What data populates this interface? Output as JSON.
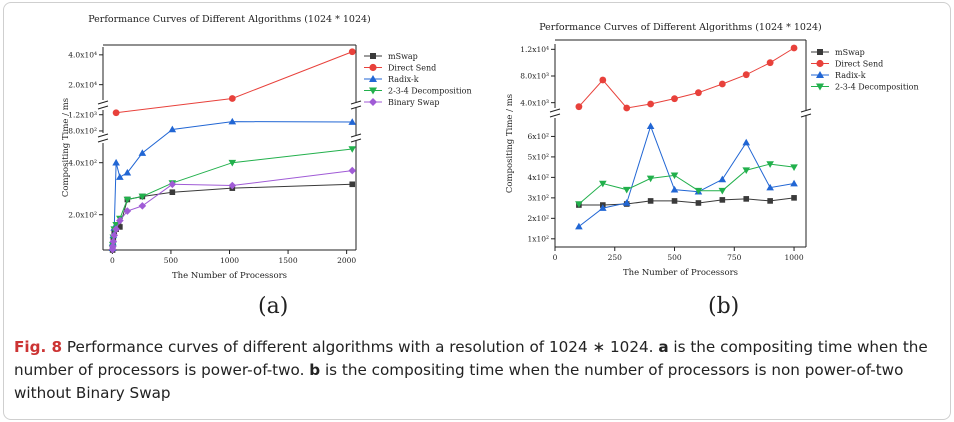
{
  "charts": {
    "a": {
      "sublabel": "(a)",
      "chart_data": {
        "type": "line",
        "title": "Performance Curves of Different Algorithms (1024 * 1024)",
        "xlabel": "The Number of Processors",
        "ylabel": "Compositing Time / ms",
        "xlim": [
          -80,
          2080
        ],
        "x_ticks": [
          0,
          500,
          1000,
          1500,
          2000
        ],
        "y_scale": "log, broken axis",
        "y_segments": [
          {
            "range": [
              125,
              520
            ],
            "ticks": [
              200,
              400
            ],
            "tick_labels": [
              "2.0x10²",
              "4.0x10²"
            ]
          },
          {
            "range": [
              760,
              1350
            ],
            "ticks": [
              800,
              1200
            ],
            "tick_labels": [
              "8.0x10²",
              "1.2x10³"
            ]
          },
          {
            "range": [
              14000,
              48000
            ],
            "ticks": [
              20000,
              40000
            ],
            "tick_labels": [
              "2.0x10⁴",
              "4.0x10⁴"
            ]
          }
        ],
        "legend_position": "top-right",
        "series": [
          {
            "name": "mSwap",
            "color": "#3a3a3a",
            "marker": "square",
            "x": [
              2,
              4,
              8,
              16,
              32,
              64,
              128,
              256,
              512,
              1024,
              2048
            ],
            "y": [
              125,
              133,
              145,
              158,
              165,
              170,
              245,
              255,
              270,
              285,
              300
            ]
          },
          {
            "name": "Direct Send",
            "color": "#e8413b",
            "marker": "circle",
            "x": [
              32,
              1024,
              2048
            ],
            "y": [
              1260,
              14500,
              43000
            ]
          },
          {
            "name": "Radix-k",
            "color": "#2166d4",
            "marker": "triangle-up",
            "x": [
              2,
              4,
              8,
              16,
              32,
              64,
              128,
              256,
              512,
              1024,
              2048
            ],
            "y": [
              128,
              138,
              152,
              168,
              400,
              330,
              350,
              455,
              830,
              1010,
              1000
            ]
          },
          {
            "name": "2-3-4 Decomposition",
            "color": "#22b04c",
            "marker": "triangle-down",
            "x": [
              2,
              4,
              8,
              16,
              32,
              64,
              128,
              256,
              512,
              1024,
              2048
            ],
            "y": [
              128,
              134,
              148,
              165,
              175,
              190,
              245,
              255,
              305,
              400,
              480
            ]
          },
          {
            "name": "Binary Swap",
            "color": "#a05bd6",
            "marker": "diamond",
            "x": [
              2,
              4,
              8,
              16,
              32,
              64,
              128,
              256,
              512,
              1024,
              2048
            ],
            "y": [
              126,
              131,
              140,
              152,
              165,
              185,
              210,
              225,
              300,
              295,
              360
            ]
          }
        ]
      }
    },
    "b": {
      "sublabel": "(b)",
      "chart_data": {
        "type": "line",
        "title": "Performance Curves of Different Algorithms (1024 * 1024)",
        "xlabel": "The Number of Processors",
        "ylabel": "Compositing Time / ms",
        "xlim": [
          0,
          1050
        ],
        "x_ticks": [
          0,
          250,
          500,
          750,
          1000
        ],
        "y_scale": "broken axis",
        "y_segments": [
          {
            "range": [
              60,
              690
            ],
            "ticks": [
              100,
              200,
              300,
              400,
              500,
              600
            ],
            "tick_labels": [
              "1x10²",
              "2x10²",
              "3x10²",
              "4x10²",
              "5x10²",
              "6x10²"
            ]
          },
          {
            "range": [
              3200,
              12800
            ],
            "ticks": [
              4000,
              8000,
              12000
            ],
            "tick_labels": [
              "4.0x10³",
              "8.0x10³",
              "1.2x10⁴"
            ]
          }
        ],
        "legend_position": "top-right",
        "series": [
          {
            "name": "mSwap",
            "color": "#3a3a3a",
            "marker": "square",
            "x": [
              100,
              200,
              300,
              400,
              500,
              600,
              700,
              800,
              900,
              1000
            ],
            "y": [
              265,
              265,
              270,
              285,
              285,
              275,
              290,
              295,
              285,
              300
            ]
          },
          {
            "name": "Direct Send",
            "color": "#e8413b",
            "marker": "circle",
            "x": [
              100,
              200,
              300,
              400,
              500,
              600,
              700,
              800,
              900,
              1000
            ],
            "y": [
              3400,
              7400,
              3200,
              3800,
              4600,
              5500,
              6800,
              8200,
              10000,
              12200
            ]
          },
          {
            "name": "Radix-k",
            "color": "#2166d4",
            "marker": "triangle-up",
            "x": [
              100,
              200,
              300,
              400,
              500,
              600,
              700,
              800,
              900,
              1000
            ],
            "y": [
              160,
              250,
              275,
              650,
              340,
              330,
              390,
              570,
              350,
              370
            ]
          },
          {
            "name": "2-3-4 Decomposition",
            "color": "#22b04c",
            "marker": "triangle-down",
            "x": [
              100,
              200,
              300,
              400,
              500,
              600,
              700,
              800,
              900,
              1000
            ],
            "y": [
              270,
              370,
              340,
              395,
              410,
              335,
              335,
              435,
              465,
              450
            ]
          }
        ]
      }
    }
  },
  "caption": {
    "fig_label": "Fig. 8",
    "text_1": "  Performance curves of different algorithms with a resolution of 1024 ∗ 1024. ",
    "bold_a": "a",
    "text_2": " is the compositing time when the number of processors is power-of-two. ",
    "bold_b": "b",
    "text_3": " is the compositing time when the number of processors is non power-of-two without Binary Swap"
  }
}
